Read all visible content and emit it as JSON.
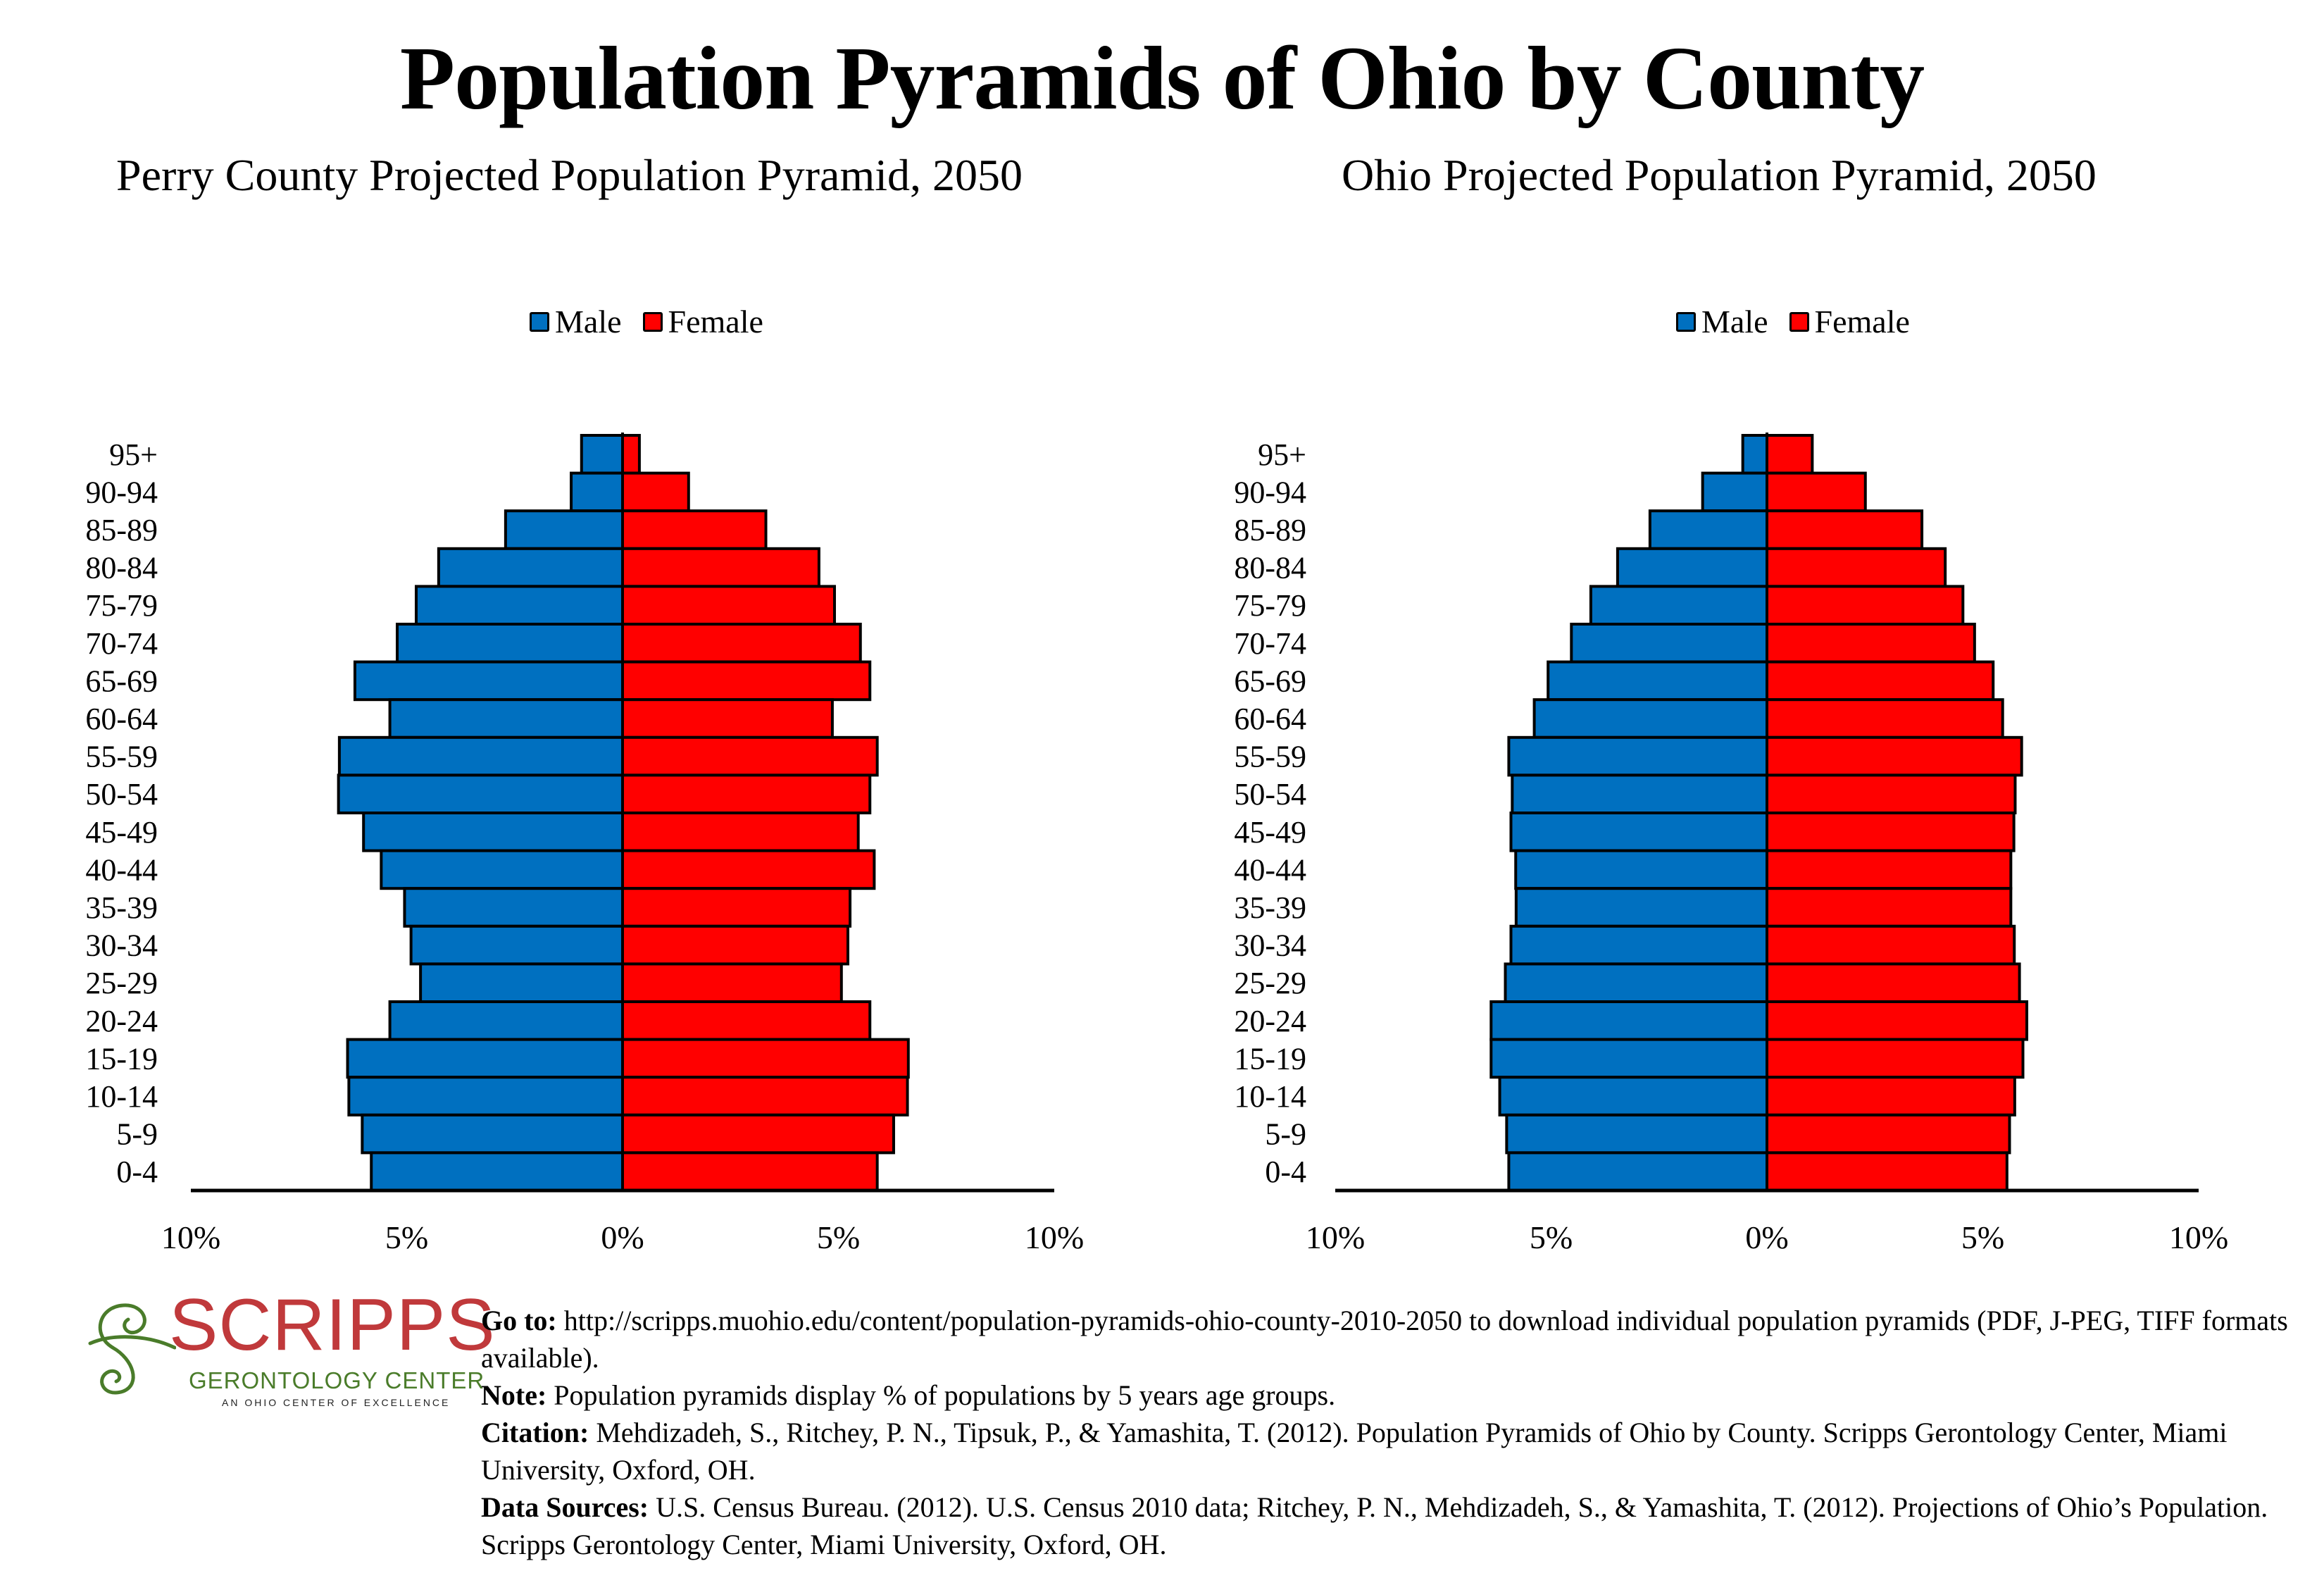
{
  "header": {
    "title": "Population Pyramids of Ohio by County"
  },
  "legend": {
    "male": "Male",
    "female": "Female"
  },
  "colors": {
    "male": "#0070c0",
    "female": "#ff0000",
    "outline": "#000000",
    "logo_red": "#c0393b",
    "logo_green": "#4a7c2a"
  },
  "chart_data": [
    {
      "type": "bar",
      "orientation": "horizontal-pyramid",
      "title": "Perry County Projected Population Pyramid, 2050",
      "categories": [
        "95+",
        "90-94",
        "85-89",
        "80-84",
        "75-79",
        "70-74",
        "65-69",
        "60-64",
        "55-59",
        "50-54",
        "45-49",
        "40-44",
        "35-39",
        "30-34",
        "25-29",
        "20-24",
        "15-19",
        "10-14",
        "5-9",
        "0-4"
      ],
      "series": [
        {
          "name": "Male",
          "values": [
            0.95,
            1.19,
            2.71,
            4.26,
            4.78,
            5.22,
            6.2,
            5.39,
            6.56,
            6.58,
            6.0,
            5.59,
            5.05,
            4.9,
            4.68,
            5.39,
            6.37,
            6.34,
            6.03,
            5.82
          ]
        },
        {
          "name": "Female",
          "values": [
            0.39,
            1.53,
            3.32,
            4.55,
            4.91,
            5.51,
            5.73,
            4.86,
            5.9,
            5.73,
            5.46,
            5.83,
            5.27,
            5.22,
            5.07,
            5.73,
            6.62,
            6.6,
            6.28,
            5.9
          ]
        }
      ],
      "xlabel": "",
      "ylabel": "",
      "xlim": [
        -10,
        10
      ],
      "xticks": [
        "10%",
        "5%",
        "0%",
        "5%",
        "10%"
      ],
      "legend": "top-center",
      "grid": false
    },
    {
      "type": "bar",
      "orientation": "horizontal-pyramid",
      "title": "Ohio Projected Population Pyramid, 2050",
      "categories": [
        "95+",
        "90-94",
        "85-89",
        "80-84",
        "75-79",
        "70-74",
        "65-69",
        "60-64",
        "55-59",
        "50-54",
        "45-49",
        "40-44",
        "35-39",
        "30-34",
        "25-29",
        "20-24",
        "15-19",
        "10-14",
        "5-9",
        "0-4"
      ],
      "series": [
        {
          "name": "Male",
          "values": [
            0.56,
            1.49,
            2.71,
            3.46,
            4.08,
            4.53,
            5.07,
            5.39,
            5.98,
            5.9,
            5.93,
            5.82,
            5.81,
            5.93,
            6.06,
            6.39,
            6.39,
            6.19,
            6.03,
            5.98
          ]
        },
        {
          "name": "Female",
          "values": [
            1.05,
            2.28,
            3.59,
            4.13,
            4.54,
            4.81,
            5.24,
            5.46,
            5.9,
            5.75,
            5.72,
            5.65,
            5.65,
            5.73,
            5.85,
            6.02,
            5.93,
            5.74,
            5.62,
            5.56
          ]
        }
      ],
      "xlabel": "",
      "ylabel": "",
      "xlim": [
        -10,
        10
      ],
      "xticks": [
        "10%",
        "5%",
        "0%",
        "5%",
        "10%"
      ],
      "legend": "top-center",
      "grid": false
    }
  ],
  "logo": {
    "name": "SCRIPPS",
    "line2": "GERONTOLOGY  CENTER",
    "line3": "AN OHIO CENTER OF EXCELLENCE"
  },
  "footer": {
    "goto_label": "Go to:",
    "goto_text": " http://scripps.muohio.edu/content/population-pyramids-ohio-county-2010-2050 to download individual population pyramids (PDF, J-PEG, TIFF formats available).",
    "note_label": "Note:",
    "note_text": " Population pyramids display % of populations by 5 years age groups.",
    "citation_label": "Citation:",
    "citation_text": " Mehdizadeh, S., Ritchey, P. N., Tipsuk, P., & Yamashita, T. (2012). Population Pyramids of Ohio by County. Scripps Gerontology Center, Miami University, Oxford, OH.",
    "sources_label": "Data Sources:",
    "sources_text": " U.S. Census Bureau. (2012). U.S. Census 2010 data; Ritchey, P. N., Mehdizadeh, S., & Yamashita, T. (2012). Projections of Ohio’s Population. Scripps Gerontology Center, Miami University, Oxford, OH."
  }
}
